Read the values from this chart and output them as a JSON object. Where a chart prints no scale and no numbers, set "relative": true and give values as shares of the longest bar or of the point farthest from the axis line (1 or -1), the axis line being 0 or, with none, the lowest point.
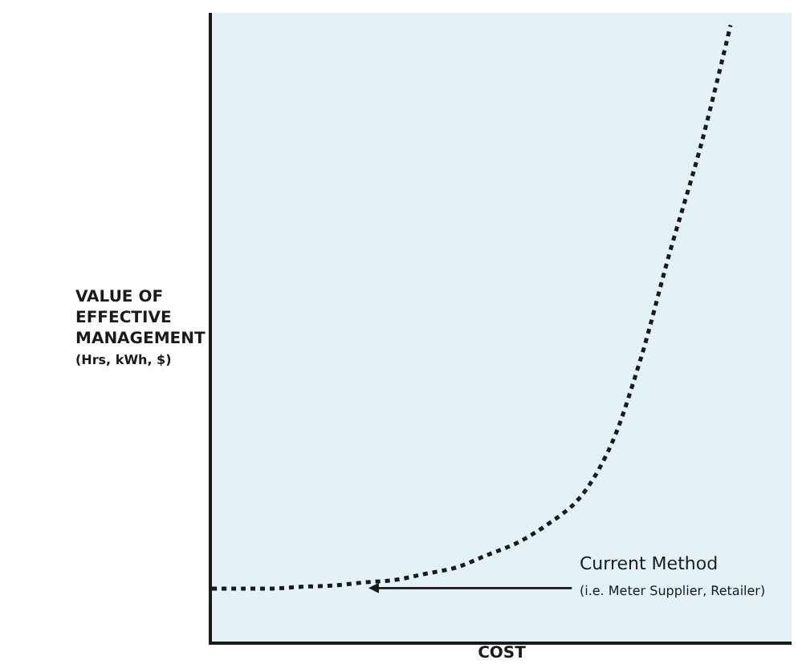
{
  "chart_data": {
    "type": "line",
    "relative": true,
    "xlabel": "COST",
    "ylabel": "VALUE OF EFFECTIVE MANAGEMENT (Hrs, kWh, $)",
    "categories": [
      null,
      null,
      null,
      null,
      null,
      null,
      null,
      null,
      null,
      null,
      null,
      null,
      null,
      null,
      null,
      null,
      null,
      null,
      null,
      null
    ],
    "series": [
      {
        "color": "#1a1a1a",
        "values": [
          0.086,
          0.086,
          0.086,
          0.089,
          0.091,
          0.096,
          0.1,
          0.11,
          0.12,
          0.14,
          0.16,
          0.19,
          0.23,
          0.31,
          0.45,
          0.63,
          0.8,
          1.0,
          null,
          null
        ]
      }
    ],
    "annotations": [
      "Current Method",
      "(i.e. Meter Supplier, Retailer)"
    ],
    "line_style": "dotted",
    "marker": "none",
    "grid": false,
    "tick_labels": false
  }
}
